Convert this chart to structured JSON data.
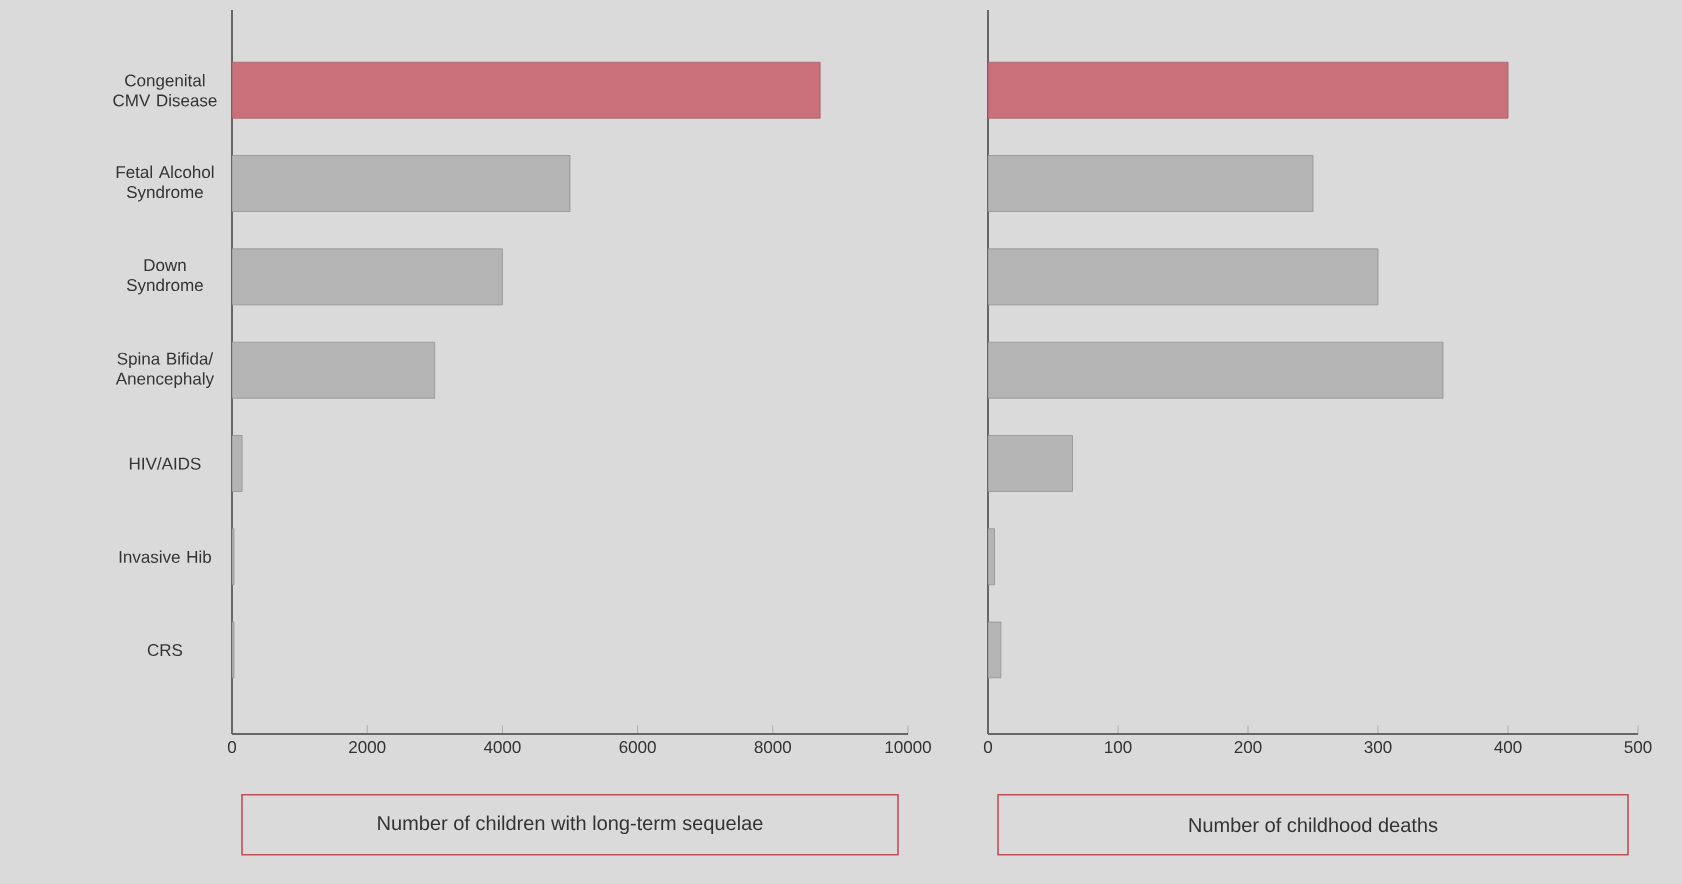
{
  "chart_data": [
    {
      "type": "bar",
      "orientation": "horizontal",
      "categories": [
        "Congenital CMV Disease",
        "Fetal Alcohol Syndrome",
        "Down Syndrome",
        "Spina Bifida/ Anencephaly",
        "HIV/AIDS",
        "Invasive Hib",
        "CRS"
      ],
      "values": [
        8700,
        5000,
        4000,
        3000,
        150,
        30,
        30
      ],
      "colors": [
        "#c9707a",
        "#b4b4b4",
        "#b4b4b4",
        "#b4b4b4",
        "#b4b4b4",
        "#b4b4b4",
        "#b4b4b4"
      ],
      "xlim": [
        0,
        10000
      ],
      "xticks": [
        0,
        2000,
        4000,
        6000,
        8000,
        10000
      ],
      "xlabel": "Number of children with long-term sequelae"
    },
    {
      "type": "bar",
      "orientation": "horizontal",
      "categories": [
        null,
        null,
        null,
        null,
        null,
        null,
        null
      ],
      "values": [
        400,
        250,
        300,
        350,
        65,
        5,
        10
      ],
      "colors": [
        "#c9707a",
        "#b4b4b4",
        "#b4b4b4",
        "#b4b4b4",
        "#b4b4b4",
        "#b4b4b4",
        "#b4b4b4"
      ],
      "xlim": [
        0,
        500
      ],
      "xticks": [
        0,
        100,
        200,
        300,
        400,
        500
      ],
      "xlabel": "Number of childhood deaths"
    }
  ]
}
